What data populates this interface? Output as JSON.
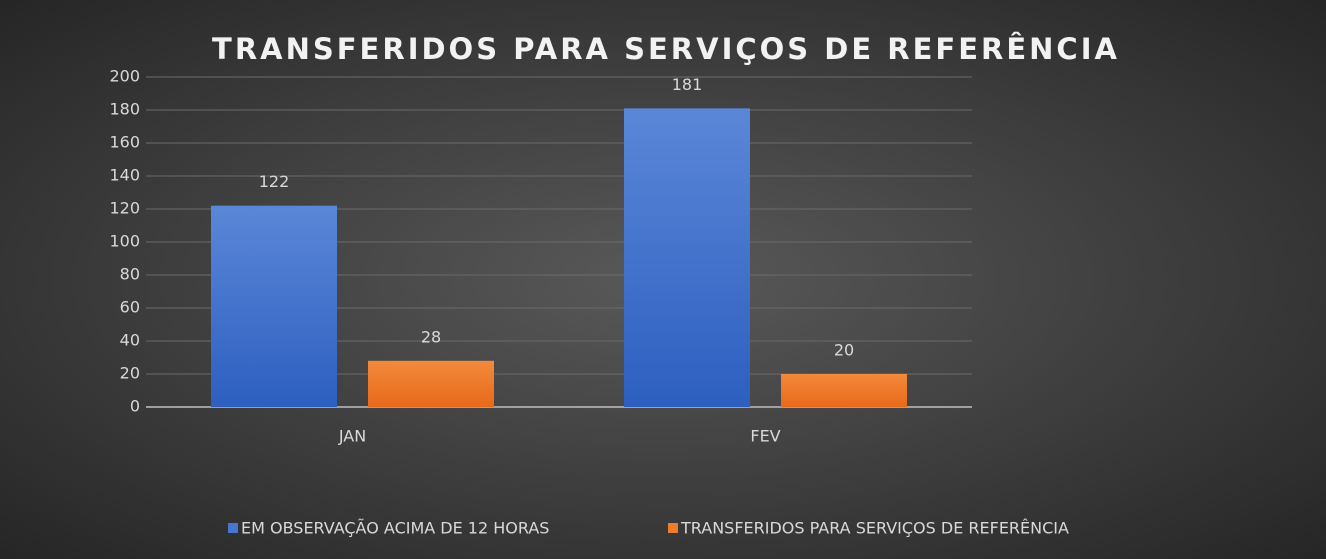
{
  "chart_data": {
    "type": "bar",
    "title": "TRANSFERIDOS PARA SERVIÇOS DE REFERÊNCIA",
    "categories": [
      "JAN",
      "FEV"
    ],
    "series": [
      {
        "name": "EM OBSERVAÇÃO ACIMA DE 12 HORAS",
        "color": "#4677d0",
        "values": [
          122,
          181
        ]
      },
      {
        "name": "TRANSFERIDOS PARA SERVIÇOS DE REFERÊNCIA",
        "color": "#ef7b2b",
        "values": [
          28,
          20
        ]
      }
    ],
    "ylim": [
      0,
      200
    ],
    "yticks": [
      0,
      20,
      40,
      60,
      80,
      100,
      120,
      140,
      160,
      180,
      200
    ],
    "grid": true,
    "legend": "bottom"
  }
}
